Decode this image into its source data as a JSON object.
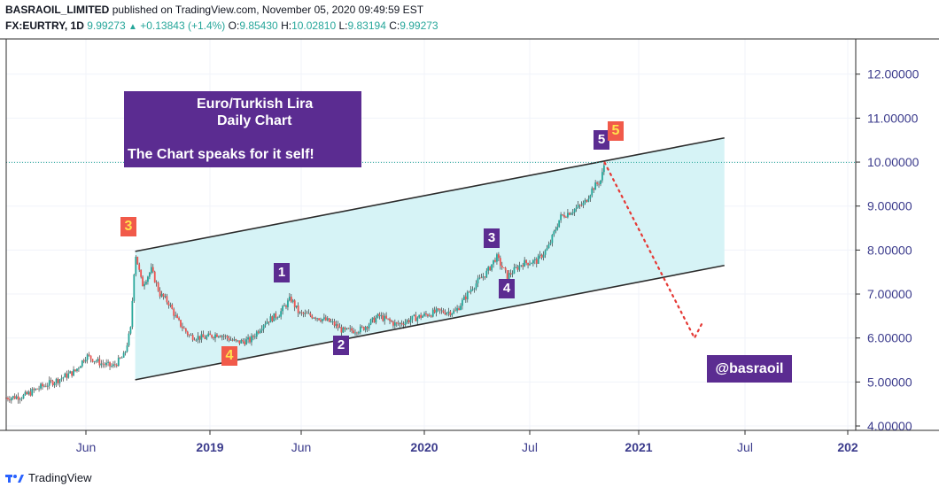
{
  "header": {
    "publisher": "BASRAOIL_LIMITED",
    "published_text": "published on TradingView.com, November 05, 2020 09:49:59 EST",
    "symbol": "FX:EURTRY, 1D",
    "last": "9.99273",
    "change": "+0.13843 (+1.4%)",
    "o_label": "O:",
    "o_value": "9.85430",
    "h_label": "H:",
    "h_value": "10.02810",
    "l_label": "L:",
    "l_value": "9.83194",
    "c_label": "C:",
    "c_value": "9.99273"
  },
  "annotations": {
    "title_line1": "Euro/Turkish Lira",
    "title_line2": "Daily Chart",
    "title_line3": "The Chart speaks for it self!",
    "handle": "@basraoil",
    "waves": [
      {
        "label": "3",
        "style": "o"
      },
      {
        "label": "4",
        "style": "o"
      },
      {
        "label": "1",
        "style": "p"
      },
      {
        "label": "2",
        "style": "p"
      },
      {
        "label": "3",
        "style": "p"
      },
      {
        "label": "4",
        "style": "p"
      },
      {
        "label": "5",
        "style": "p"
      },
      {
        "label": "5",
        "style": "o"
      }
    ]
  },
  "footer": {
    "brand": "TradingView"
  },
  "colors": {
    "channel_fill": "#d6f3f6",
    "candle_up": "#26a69a",
    "candle_down": "#ef5350",
    "projection": "#e53935",
    "wave_purple": "#5b2c91",
    "wave_orange": "#f15a4a",
    "axis_text": "#3b3b8c",
    "last_price_line": "#26a69a"
  },
  "chart_data": {
    "type": "candlestick",
    "symbol": "FX:EURTRY",
    "timeframe": "1D",
    "yaxis": {
      "ticks": [
        "4.00000",
        "5.00000",
        "6.00000",
        "7.00000",
        "8.00000",
        "9.00000",
        "10.00000",
        "11.00000",
        "12.00000"
      ],
      "range": [
        3.9,
        12.8
      ]
    },
    "xaxis": {
      "labels": [
        "Jun",
        "2019",
        "Jun",
        "2020",
        "Jul",
        "2021",
        "Jul",
        "202"
      ],
      "range": [
        "2018-01-01",
        "2022-01-15"
      ]
    },
    "last_price": 9.99273,
    "series_path": [
      [
        "2018-01-01",
        4.64
      ],
      [
        "2018-02-01",
        4.68
      ],
      [
        "2018-03-01",
        4.88
      ],
      [
        "2018-04-01",
        5.05
      ],
      [
        "2018-05-01",
        5.25
      ],
      [
        "2018-05-20",
        5.6
      ],
      [
        "2018-06-15",
        5.42
      ],
      [
        "2018-07-05",
        5.35
      ],
      [
        "2018-07-25",
        5.6
      ],
      [
        "2018-08-05",
        6.2
      ],
      [
        "2018-08-13",
        7.95
      ],
      [
        "2018-08-25",
        7.2
      ],
      [
        "2018-09-10",
        7.55
      ],
      [
        "2018-09-25",
        7.0
      ],
      [
        "2018-10-10",
        6.8
      ],
      [
        "2018-10-25",
        6.4
      ],
      [
        "2018-11-15",
        6.05
      ],
      [
        "2018-12-10",
        6.0
      ],
      [
        "2019-01-05",
        6.1
      ],
      [
        "2019-02-05",
        5.9
      ],
      [
        "2019-03-01",
        5.95
      ],
      [
        "2019-03-25",
        6.35
      ],
      [
        "2019-04-20",
        6.55
      ],
      [
        "2019-05-10",
        6.9
      ],
      [
        "2019-05-25",
        6.55
      ],
      [
        "2019-06-20",
        6.5
      ],
      [
        "2019-07-20",
        6.35
      ],
      [
        "2019-08-10",
        6.15
      ],
      [
        "2019-09-10",
        6.2
      ],
      [
        "2019-10-10",
        6.5
      ],
      [
        "2019-11-10",
        6.3
      ],
      [
        "2019-12-10",
        6.45
      ],
      [
        "2020-01-20",
        6.6
      ],
      [
        "2020-02-20",
        6.6
      ],
      [
        "2020-03-20",
        7.15
      ],
      [
        "2020-04-15",
        7.5
      ],
      [
        "2020-05-01",
        7.85
      ],
      [
        "2020-05-20",
        7.4
      ],
      [
        "2020-06-15",
        7.7
      ],
      [
        "2020-07-10",
        7.75
      ],
      [
        "2020-07-30",
        8.05
      ],
      [
        "2020-08-20",
        8.75
      ],
      [
        "2020-09-10",
        8.9
      ],
      [
        "2020-09-30",
        9.05
      ],
      [
        "2020-10-15",
        9.4
      ],
      [
        "2020-10-30",
        9.6
      ],
      [
        "2020-11-05",
        9.99273
      ]
    ],
    "channel": {
      "upper": [
        [
          "2018-08-13",
          7.97
        ],
        [
          "2021-06-01",
          10.55
        ]
      ],
      "lower": [
        [
          "2018-08-13",
          5.05
        ],
        [
          "2021-06-01",
          7.65
        ]
      ]
    },
    "projection": [
      [
        "2020-11-05",
        9.99
      ],
      [
        "2021-04-10",
        6.0
      ],
      [
        "2021-04-25",
        6.38
      ]
    ],
    "wave_points": [
      {
        "label": "3",
        "x": "2018-08-13",
        "y": 7.95
      },
      {
        "label": "4",
        "x": "2019-02-05",
        "y": 5.9
      },
      {
        "label": "1",
        "x": "2019-05-10",
        "y": 6.9
      },
      {
        "label": "2",
        "x": "2019-08-10",
        "y": 6.15
      },
      {
        "label": "3",
        "x": "2020-05-01",
        "y": 7.85
      },
      {
        "label": "4",
        "x": "2020-05-20",
        "y": 7.4
      },
      {
        "label": "5",
        "x": "2020-11-05",
        "y": 9.99
      },
      {
        "label": "5",
        "x": "2020-11-05",
        "y": 9.99
      }
    ]
  }
}
